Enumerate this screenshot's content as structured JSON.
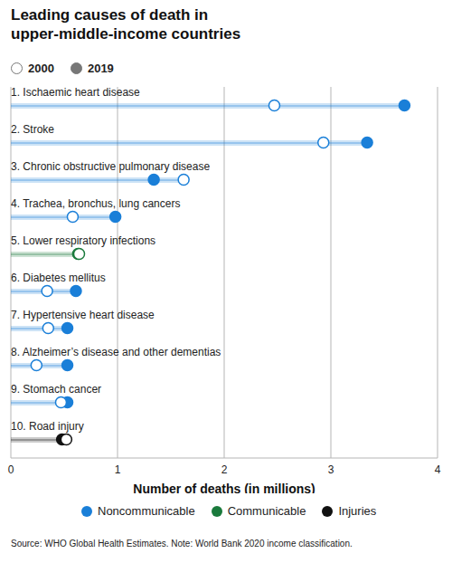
{
  "chart_data": {
    "type": "dumbbell",
    "title": "Leading causes of death in\nupper-middle-income countries",
    "orientation": "horizontal",
    "categories": [
      "1. Ischaemic heart disease",
      "2. Stroke",
      "3. Chronic obstructive pulmonary disease",
      "4. Trachea, bronchus, lung cancers",
      "5. Lower respiratory infections",
      "6. Diabetes mellitus",
      "7. Hypertensive heart disease",
      "8. Alzheimer’s disease and other dementias",
      "9. Stomach cancer",
      "10. Road injury"
    ],
    "category_groups": [
      "Noncommunicable",
      "Noncommunicable",
      "Noncommunicable",
      "Noncommunicable",
      "Communicable",
      "Noncommunicable",
      "Noncommunicable",
      "Noncommunicable",
      "Noncommunicable",
      "Injuries"
    ],
    "groups": [
      {
        "name": "Noncommunicable",
        "color": "#1a7fd8"
      },
      {
        "name": "Communicable",
        "color": "#1a7a3c"
      },
      {
        "name": "Injuries",
        "color": "#111111"
      }
    ],
    "series": [
      {
        "name": "2000",
        "marker": "hollow",
        "values": [
          2.47,
          2.93,
          1.62,
          0.58,
          0.64,
          0.34,
          0.35,
          0.24,
          0.47,
          0.52
        ]
      },
      {
        "name": "2019",
        "marker": "filled",
        "values": [
          3.69,
          3.34,
          1.34,
          0.98,
          0.63,
          0.61,
          0.53,
          0.53,
          0.53,
          0.48
        ]
      }
    ],
    "x_label": "Number of deaths (in millions)",
    "xlim": [
      0,
      4
    ],
    "xticks": [
      0,
      1,
      2,
      3,
      4
    ],
    "grid": true,
    "note": "Source: WHO Global Health Estimates. Note: World Bank 2020 income classification."
  }
}
